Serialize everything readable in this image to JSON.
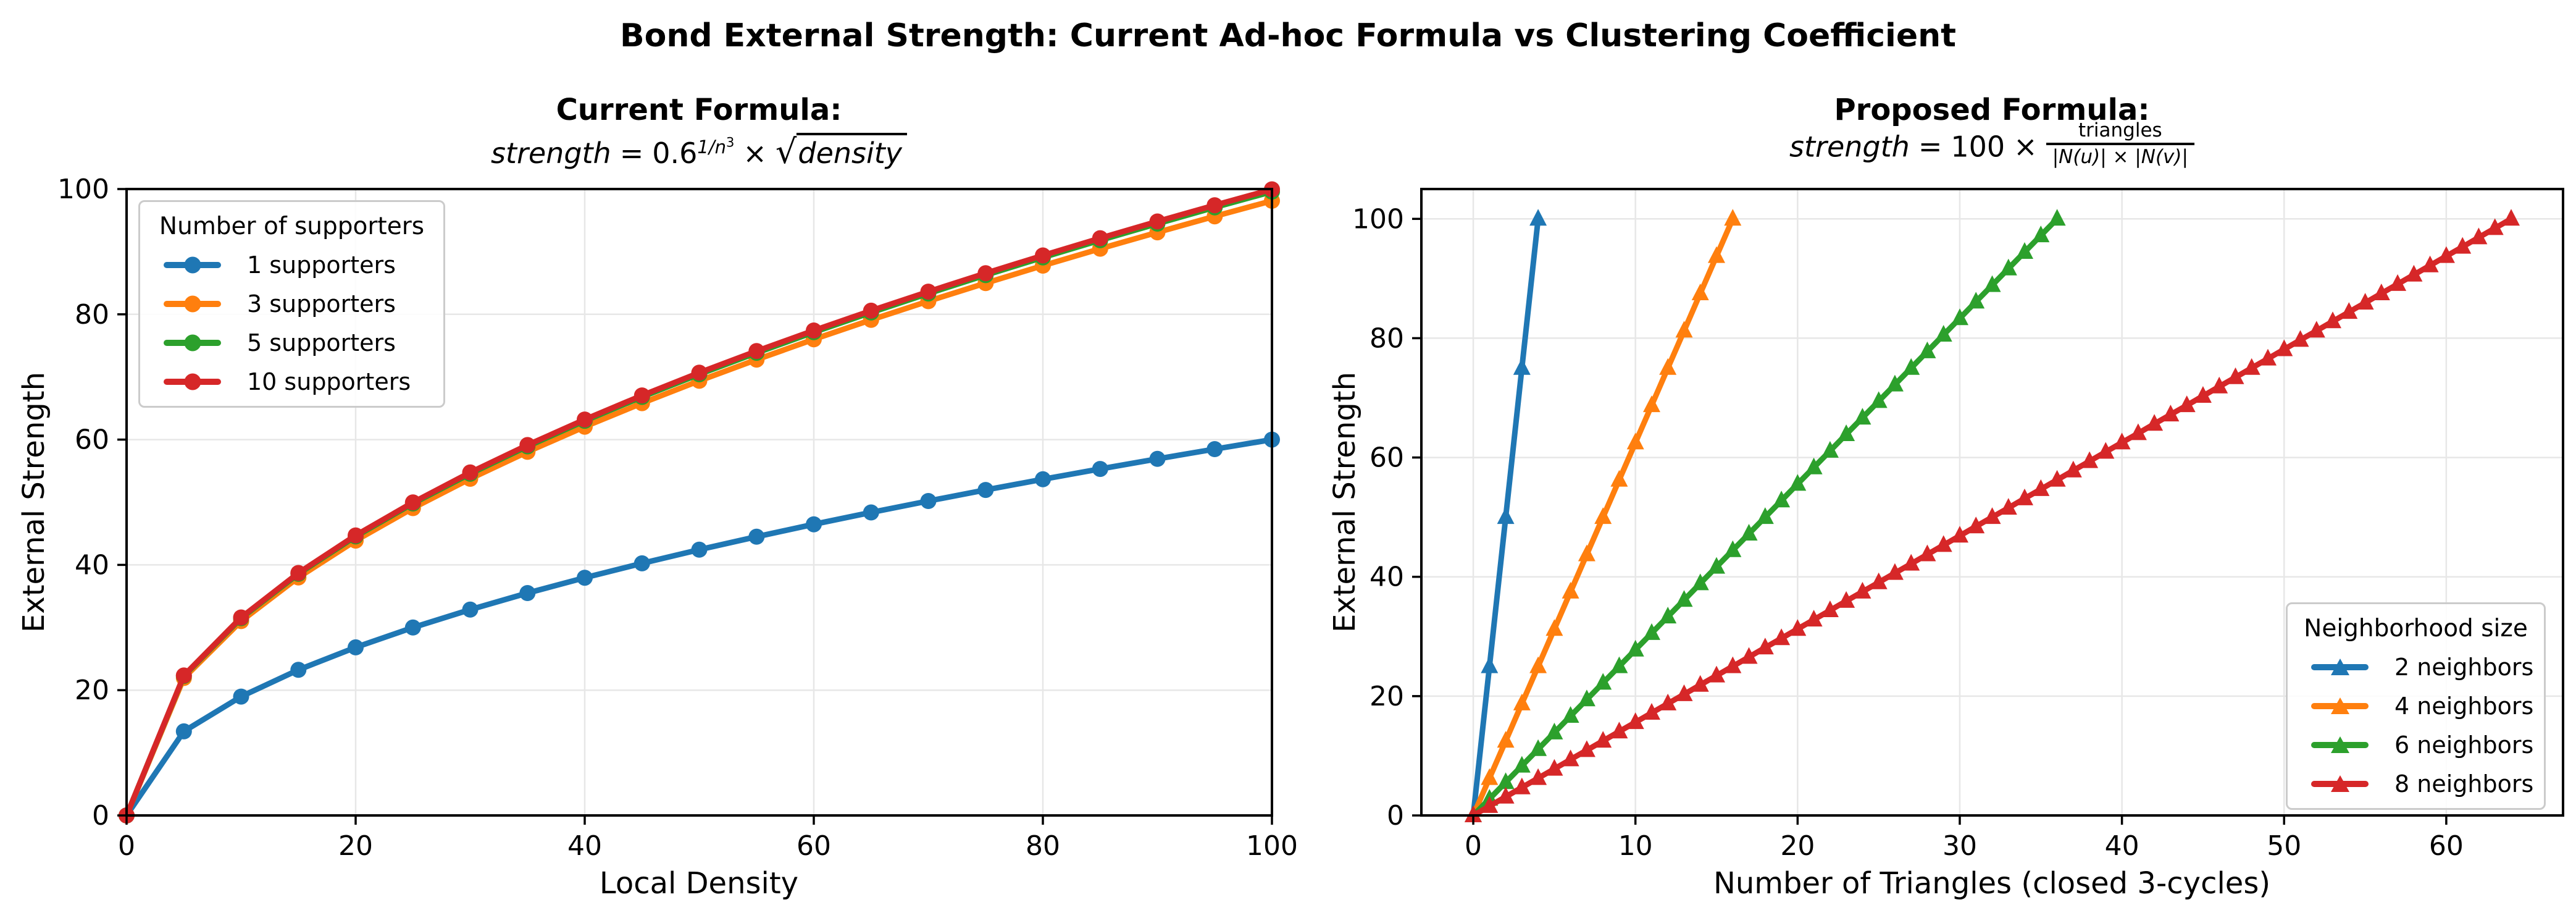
{
  "figure": {
    "suptitle": "Bond External Strength: Current Ad-hoc Formula vs Clustering Coefficient",
    "background": "#ffffff",
    "text_color": "#000000",
    "grid_color": "#e7e7e7"
  },
  "chart_data": [
    {
      "type": "line",
      "title": "Current Formula:",
      "formula": {
        "lhs": "strength",
        "eq": "=",
        "base": "0.6",
        "exponent": "1/n",
        "exponent_power": "3",
        "operator": "×",
        "sqrt_symbol": "√",
        "radicand": "density"
      },
      "xlabel": "Local Density",
      "ylabel": "External Strength",
      "xlim": [
        0,
        100
      ],
      "ylim": [
        0,
        100
      ],
      "xticks": [
        0,
        20,
        40,
        60,
        80,
        100
      ],
      "yticks": [
        0,
        20,
        40,
        60,
        80,
        100
      ],
      "grid": true,
      "marker": "circle",
      "legend_title": "Number of supporters",
      "legend_position": "upper left",
      "x": [
        0,
        5,
        10,
        15,
        20,
        25,
        30,
        35,
        40,
        45,
        50,
        55,
        60,
        65,
        70,
        75,
        80,
        85,
        90,
        95,
        100
      ],
      "series": [
        {
          "name": "1 supporters",
          "color": "#1f77b4",
          "values": [
            0,
            13.42,
            18.97,
            23.24,
            26.83,
            30,
            32.86,
            35.5,
            37.95,
            40.25,
            42.43,
            44.5,
            46.48,
            48.37,
            50.2,
            51.96,
            53.67,
            55.32,
            56.92,
            58.48,
            60
          ]
        },
        {
          "name": "3 supporters",
          "color": "#ff7f0e",
          "values": [
            0,
            21.94,
            31.03,
            38,
            43.88,
            49.06,
            53.75,
            58.05,
            62.06,
            65.82,
            69.39,
            72.77,
            76.01,
            79.11,
            82.1,
            84.98,
            87.77,
            90.47,
            93.09,
            95.64,
            98.13
          ]
        },
        {
          "name": "5 supporters",
          "color": "#2ca02c",
          "values": [
            0,
            22.27,
            31.49,
            38.57,
            44.54,
            49.8,
            54.55,
            58.92,
            62.99,
            66.81,
            70.42,
            73.86,
            77.14,
            80.29,
            83.32,
            86.25,
            89.08,
            91.82,
            94.48,
            97.07,
            99.59
          ]
        },
        {
          "name": "10 supporters",
          "color": "#d62728",
          "values": [
            0,
            22.35,
            31.61,
            38.71,
            44.7,
            49.97,
            54.75,
            59.13,
            63.21,
            67.05,
            70.68,
            74.13,
            77.42,
            80.58,
            83.62,
            86.56,
            89.4,
            92.15,
            94.82,
            97.42,
            99.95
          ]
        }
      ]
    },
    {
      "type": "line",
      "title": "Proposed Formula:",
      "formula": {
        "lhs": "strength",
        "eq": "=",
        "coefficient": "100",
        "operator": "×",
        "numerator": "triangles",
        "denominator": "|N(u)| × |N(v)|"
      },
      "xlabel": "Number of Triangles (closed 3-cycles)",
      "ylabel": "External Strength",
      "xlim": [
        -3.2,
        67.2
      ],
      "ylim": [
        0,
        105
      ],
      "xticks": [
        0,
        10,
        20,
        30,
        40,
        50,
        60
      ],
      "yticks": [
        0,
        20,
        40,
        60,
        80,
        100
      ],
      "grid": true,
      "marker": "triangle",
      "legend_title": "Neighborhood size",
      "legend_position": "lower right",
      "series": [
        {
          "name": "2 neighbors",
          "color": "#1f77b4",
          "x_start": 0,
          "x_step": 1,
          "values": [
            0,
            25,
            50,
            75,
            100
          ]
        },
        {
          "name": "4 neighbors",
          "color": "#ff7f0e",
          "x_start": 0,
          "x_step": 1,
          "values": [
            0,
            6.25,
            12.5,
            18.75,
            25,
            31.25,
            37.5,
            43.75,
            50,
            56.25,
            62.5,
            68.75,
            75,
            81.25,
            87.5,
            93.75,
            100
          ]
        },
        {
          "name": "6 neighbors",
          "color": "#2ca02c",
          "x_start": 0,
          "x_step": 1,
          "values": [
            0,
            2.78,
            5.56,
            8.33,
            11.11,
            13.89,
            16.67,
            19.44,
            22.22,
            25,
            27.78,
            30.56,
            33.33,
            36.11,
            38.89,
            41.67,
            44.44,
            47.22,
            50,
            52.78,
            55.56,
            58.33,
            61.11,
            63.89,
            66.67,
            69.44,
            72.22,
            75,
            77.78,
            80.56,
            83.33,
            86.11,
            88.89,
            91.67,
            94.44,
            97.22,
            100
          ]
        },
        {
          "name": "8 neighbors",
          "color": "#d62728",
          "x_start": 0,
          "x_step": 1,
          "values": [
            0,
            1.56,
            3.13,
            4.69,
            6.25,
            7.81,
            9.38,
            10.94,
            12.5,
            14.06,
            15.63,
            17.19,
            18.75,
            20.31,
            21.88,
            23.44,
            25,
            26.56,
            28.13,
            29.69,
            31.25,
            32.81,
            34.38,
            35.94,
            37.5,
            39.06,
            40.63,
            42.19,
            43.75,
            45.31,
            46.88,
            48.44,
            50,
            51.56,
            53.13,
            54.69,
            56.25,
            57.81,
            59.38,
            60.94,
            62.5,
            64.06,
            65.63,
            67.19,
            68.75,
            70.31,
            71.88,
            73.44,
            75,
            76.56,
            78.13,
            79.69,
            81.25,
            82.81,
            84.38,
            85.94,
            87.5,
            89.06,
            90.63,
            92.19,
            93.75,
            95.31,
            96.88,
            98.44,
            100
          ]
        }
      ]
    }
  ]
}
